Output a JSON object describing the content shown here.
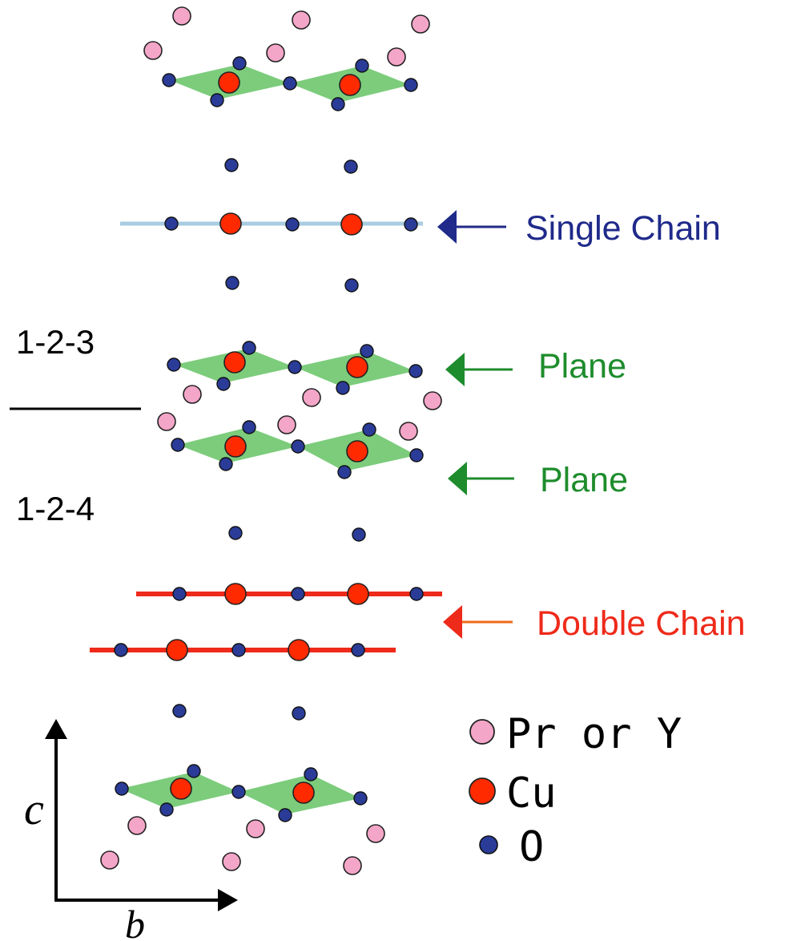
{
  "labels": {
    "single_chain": "Single Chain",
    "plane_upper": "Plane",
    "plane_lower": "Plane",
    "double_chain": "Double Chain",
    "phase_123": "1-2-3",
    "phase_124": "1-2-4"
  },
  "axes": {
    "c": "c",
    "b": "b"
  },
  "legend": [
    {
      "label": "Pr or Y",
      "atom": "pr-y"
    },
    {
      "label": "Cu",
      "atom": "cu"
    },
    {
      "label": "O",
      "atom": "o"
    }
  ],
  "colors": {
    "pr_y": "#f4a6c8",
    "cu": "#ff2a00",
    "o": "#2a3c98",
    "plaquette": "#7ccc7c",
    "single_chain_line": "#a8cce0",
    "double_chain_line": "#ee2a1a",
    "single_chain_text": "#1f2a8a",
    "plane_text": "#1e8c2c",
    "double_chain_text": "#ee2a1a"
  }
}
